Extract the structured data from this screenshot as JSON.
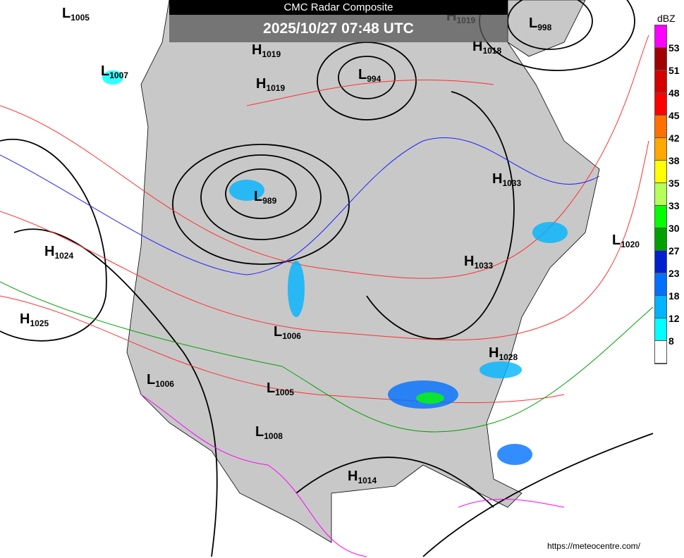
{
  "header": {
    "title": "CMC Radar Composite",
    "timestamp": "2025/10/27 07:48 UTC"
  },
  "legend": {
    "unit": "dBZ",
    "colors": [
      "#ff00ff",
      "#a00000",
      "#d40000",
      "#ff0000",
      "#ff7000",
      "#ffa800",
      "#ffff00",
      "#b4ff5a",
      "#00ff00",
      "#00a000",
      "#0020d0",
      "#0070ff",
      "#00b4ff",
      "#00ffff",
      "#ffffff"
    ],
    "labels": [
      "53",
      "51",
      "48",
      "45",
      "42",
      "38",
      "35",
      "33",
      "30",
      "27",
      "23",
      "18",
      "12",
      "8"
    ]
  },
  "pressure_centers": [
    {
      "type": "L",
      "value": "1005"
    },
    {
      "type": "L",
      "value": "1007"
    },
    {
      "type": "H",
      "value": "1019"
    },
    {
      "type": "H",
      "value": "1019"
    },
    {
      "type": "L",
      "value": "994"
    },
    {
      "type": "H",
      "value": "1019"
    },
    {
      "type": "H",
      "value": "1018"
    },
    {
      "type": "L",
      "value": "998"
    },
    {
      "type": "L",
      "value": "989"
    },
    {
      "type": "H",
      "value": "1033"
    },
    {
      "type": "H",
      "value": "1024"
    },
    {
      "type": "H",
      "value": "1033"
    },
    {
      "type": "L",
      "value": "1020"
    },
    {
      "type": "H",
      "value": "1025"
    },
    {
      "type": "L",
      "value": "1006"
    },
    {
      "type": "L",
      "value": "1006"
    },
    {
      "type": "L",
      "value": "1005"
    },
    {
      "type": "H",
      "value": "1028"
    },
    {
      "type": "L",
      "value": "1008"
    },
    {
      "type": "H",
      "value": "1014"
    }
  ],
  "contour_colors": {
    "isobar": "#000000",
    "thickness_cold": "#0000ff",
    "thickness_warm": "#ff0000",
    "thickness_540": "#0000ff"
  },
  "land_color": "#c8c8c8",
  "credit": "https://meteocentre.com/"
}
